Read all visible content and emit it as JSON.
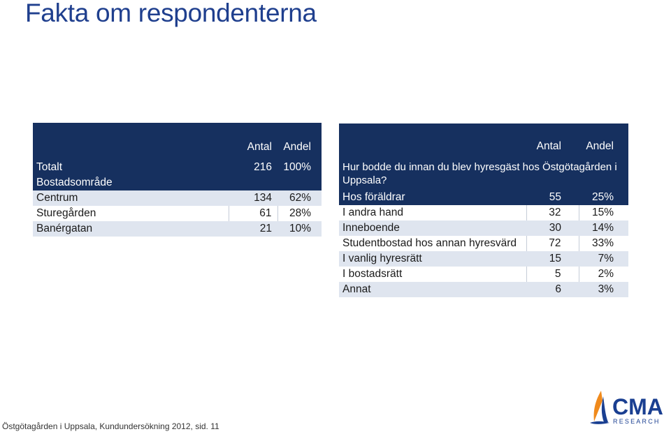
{
  "title": "Fakta om respondenterna",
  "table1": {
    "header": {
      "antal": "Antal",
      "andel": "Andel"
    },
    "rows": [
      {
        "label": "Totalt",
        "antal": "216",
        "andel": "100%"
      },
      {
        "label": "Bostadsområde",
        "antal": "",
        "andel": ""
      },
      {
        "label": "Centrum",
        "antal": "134",
        "andel": "62%"
      },
      {
        "label": "Sturegården",
        "antal": "61",
        "andel": "28%"
      },
      {
        "label": "Banérgatan",
        "antal": "21",
        "andel": "10%"
      }
    ]
  },
  "table2": {
    "header": {
      "antal": "Antal",
      "andel": "Andel"
    },
    "question": "Hur bodde du innan du blev hyresgäst hos Östgötagården i Uppsala?",
    "rows": [
      {
        "label": "Hos föräldrar",
        "antal": "55",
        "andel": "25%"
      },
      {
        "label": "I andra hand",
        "antal": "32",
        "andel": "15%"
      },
      {
        "label": "Inneboende",
        "antal": "30",
        "andel": "14%"
      },
      {
        "label": "Studentbostad hos annan hyresvärd",
        "antal": "72",
        "andel": "33%"
      },
      {
        "label": "I vanlig hyresrätt",
        "antal": "15",
        "andel": "7%"
      },
      {
        "label": "I bostadsrätt",
        "antal": "5",
        "andel": "2%"
      },
      {
        "label": "Annat",
        "antal": "6",
        "andel": "3%"
      }
    ]
  },
  "footer": "Östgötagården i Uppsala, Kundundersökning 2012, sid. 11",
  "logo": {
    "name": "CMA",
    "sub": "RESEARCH"
  },
  "colors": {
    "title": "#1f3f8e",
    "header": "#16305f",
    "row_light": "#dfe5ef",
    "logo_blue": "#1a3f91",
    "logo_orange": "#f08a1c"
  }
}
